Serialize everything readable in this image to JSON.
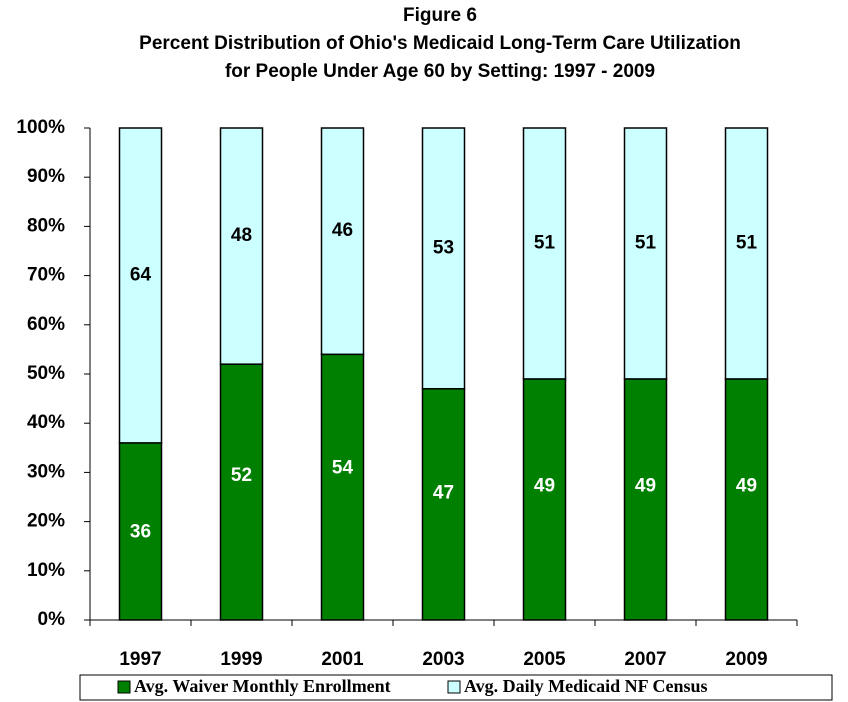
{
  "chart_data": {
    "type": "stacked_bar",
    "title": "Figure 6",
    "subtitle": [
      "Percent Distribution of Ohio's Medicaid Long-Term Care Utilization",
      "for People Under Age 60 by Setting: 1997 - 2009"
    ],
    "categories": [
      "1997",
      "1999",
      "2001",
      "2003",
      "2005",
      "2007",
      "2009"
    ],
    "series": [
      {
        "name": "Avg. Waiver Monthly Enrollment",
        "color": "#008000",
        "values": [
          36,
          52,
          54,
          47,
          49,
          49,
          49
        ]
      },
      {
        "name": "Avg. Daily Medicaid NF Census",
        "color": "#ccffff",
        "values": [
          64,
          48,
          46,
          53,
          51,
          51,
          51
        ]
      }
    ],
    "ylim": [
      0,
      100
    ],
    "yticks": [
      {
        "value": 0,
        "label": "0%"
      },
      {
        "value": 10,
        "label": "10%"
      },
      {
        "value": 20,
        "label": "20%"
      },
      {
        "value": 30,
        "label": "30%"
      },
      {
        "value": 40,
        "label": "40%"
      },
      {
        "value": 50,
        "label": "50%"
      },
      {
        "value": 60,
        "label": "60%"
      },
      {
        "value": 70,
        "label": "70%"
      },
      {
        "value": 80,
        "label": "80%"
      },
      {
        "value": 90,
        "label": "90%"
      },
      {
        "value": 100,
        "label": "100%"
      }
    ],
    "grid": false,
    "legend": "bottom"
  }
}
